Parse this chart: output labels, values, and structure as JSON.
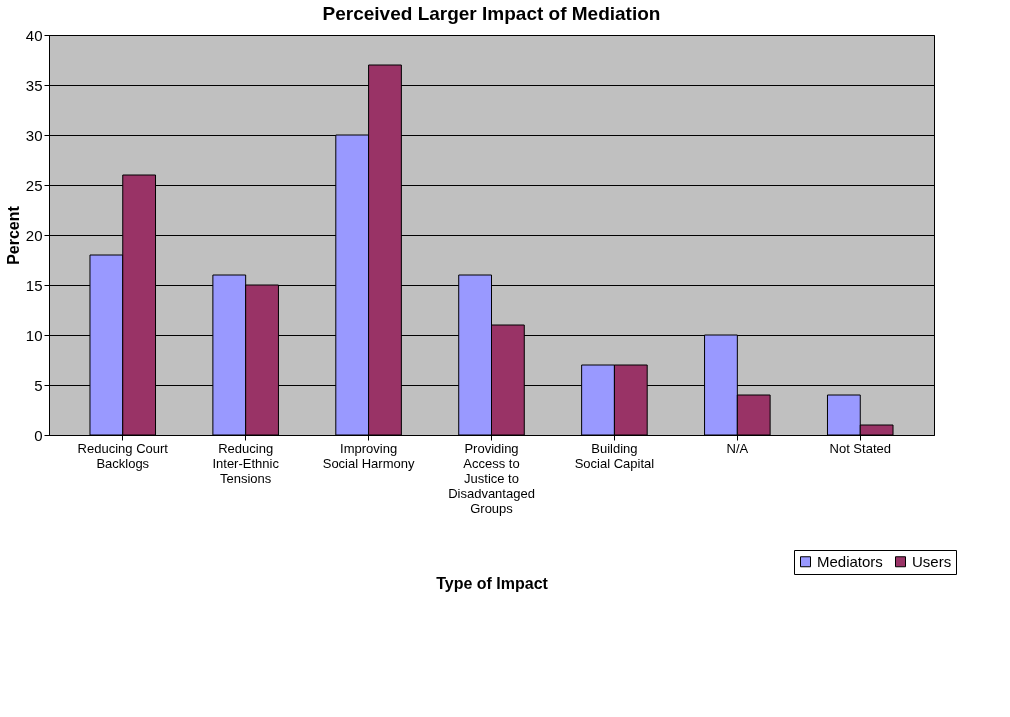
{
  "chart_data": {
    "type": "bar",
    "title": "Perceived Larger Impact of Mediation",
    "xlabel": "Type of Impact",
    "ylabel": "Percent",
    "categories": [
      "Reducing Court Backlogs",
      "Reducing Inter-Ethnic Tensions",
      "Improving Social Harmony",
      "Providing Access to Justice to Disadvantaged Groups",
      "Building Social Capital",
      "N/A",
      "Not Stated"
    ],
    "series": [
      {
        "name": "Mediators",
        "color": "#9999ff",
        "values": [
          18,
          16,
          30,
          16,
          7,
          10,
          4
        ]
      },
      {
        "name": "Users",
        "color": "#993366",
        "values": [
          26,
          15,
          37,
          11,
          7,
          4,
          1
        ]
      }
    ],
    "ylim": [
      0,
      40
    ],
    "yticks": [
      0,
      5,
      10,
      15,
      20,
      25,
      30,
      35,
      40
    ],
    "grid": "y",
    "legend": "bottom right"
  }
}
